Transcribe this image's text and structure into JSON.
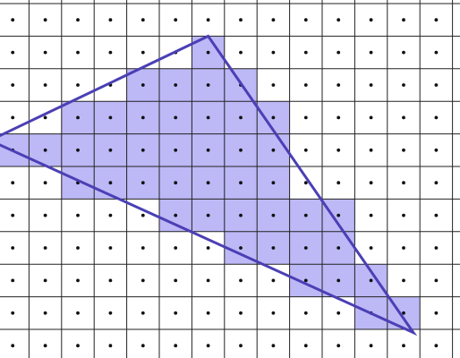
{
  "diagram": {
    "description_type": "triangle rasterization on pixel grid",
    "grid": {
      "columns": 14,
      "rows": 11,
      "line_color": "#222222",
      "dot_color": "#111111"
    },
    "triangle": {
      "vertices_in_grid_units": [
        [
          6.5,
          1.0
        ],
        [
          -0.2,
          4.2
        ],
        [
          12.8,
          10.1
        ]
      ],
      "stroke_color": "#4b3fb5",
      "fill": "none"
    },
    "covered_pixels": {
      "fill_color": "#bdb8f6",
      "cells": [
        [
          6,
          1
        ],
        [
          4,
          2
        ],
        [
          5,
          2
        ],
        [
          6,
          2
        ],
        [
          7,
          2
        ],
        [
          2,
          3
        ],
        [
          3,
          3
        ],
        [
          4,
          3
        ],
        [
          5,
          3
        ],
        [
          6,
          3
        ],
        [
          7,
          3
        ],
        [
          8,
          3
        ],
        [
          0,
          4
        ],
        [
          1,
          4
        ],
        [
          2,
          4
        ],
        [
          3,
          4
        ],
        [
          4,
          4
        ],
        [
          5,
          4
        ],
        [
          6,
          4
        ],
        [
          7,
          4
        ],
        [
          8,
          4
        ],
        [
          2,
          5
        ],
        [
          3,
          5
        ],
        [
          4,
          5
        ],
        [
          5,
          5
        ],
        [
          6,
          5
        ],
        [
          7,
          5
        ],
        [
          8,
          5
        ],
        [
          5,
          6
        ],
        [
          6,
          6
        ],
        [
          7,
          6
        ],
        [
          8,
          6
        ],
        [
          9,
          6
        ],
        [
          10,
          6
        ],
        [
          7,
          7
        ],
        [
          8,
          7
        ],
        [
          9,
          7
        ],
        [
          10,
          7
        ],
        [
          9,
          8
        ],
        [
          10,
          8
        ],
        [
          11,
          8
        ],
        [
          11,
          9
        ],
        [
          12,
          9
        ]
      ]
    }
  }
}
